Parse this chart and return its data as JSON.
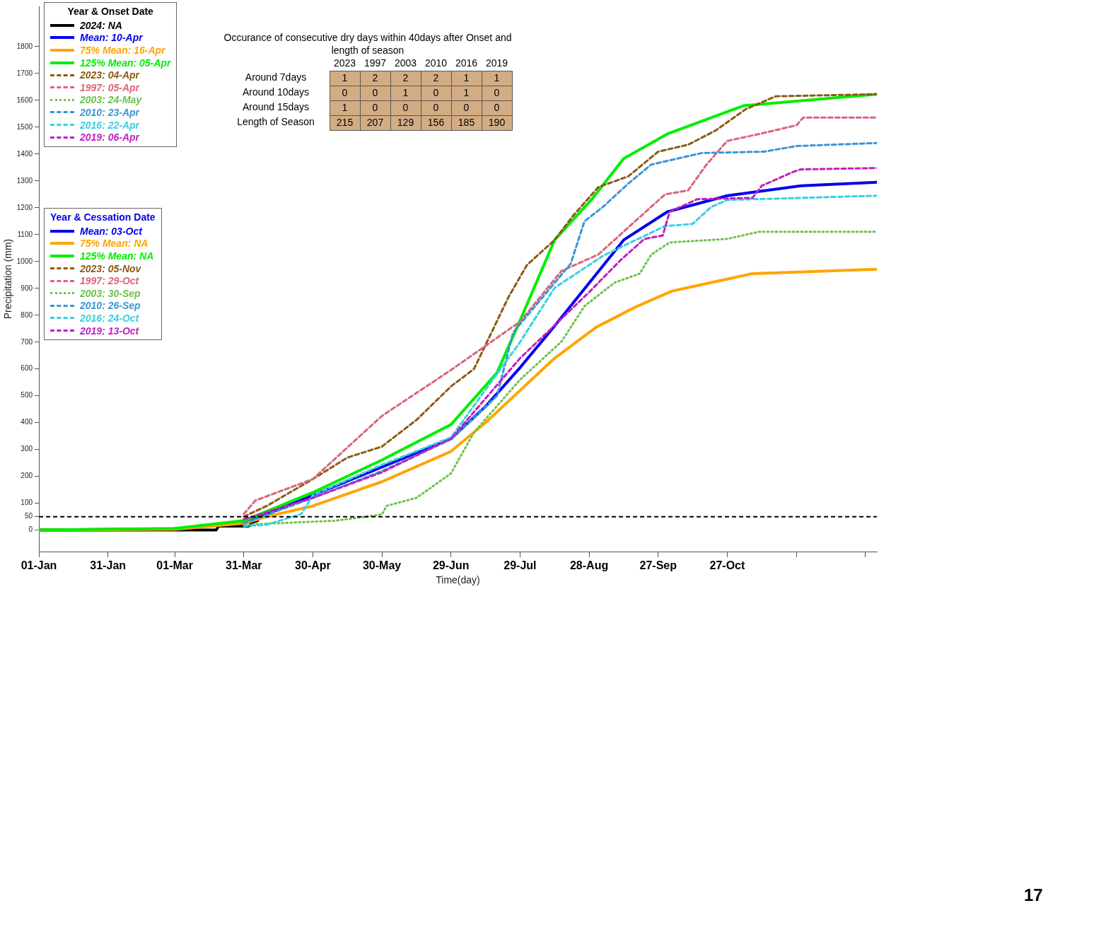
{
  "chart_data": [
    {
      "type": "line",
      "xlabel": "Time(day)",
      "ylabel": "Precipitation (mm)",
      "legend": "top left",
      "legend_title": "Year & Onset Date",
      "grid": false,
      "xlim": [
        "--01-01",
        "--12-31"
      ],
      "ylim": [
        -80,
        1950
      ],
      "xticks": [
        {
          "value": "--01-01",
          "label": "01-Jan"
        },
        {
          "value": "--01-31",
          "label": "31-Jan"
        },
        {
          "value": "--03-01",
          "label": "01-Mar"
        },
        {
          "value": "--03-31",
          "label": "31-Mar"
        },
        {
          "value": "--04-30",
          "label": "30-Apr"
        },
        {
          "value": "--05-30",
          "label": "30-May"
        },
        {
          "value": "--06-29",
          "label": "29-Jun"
        },
        {
          "value": "--07-29",
          "label": "29-Jul"
        },
        {
          "value": "--08-28",
          "label": "28-Aug"
        },
        {
          "value": "--09-27",
          "label": "27-Sep"
        },
        {
          "value": "--10-27",
          "label": "27-Oct"
        },
        {
          "value": "--11-26",
          "label": null
        },
        {
          "value": "--12-26",
          "label": null
        }
      ],
      "yticks": [
        0,
        50,
        100,
        200,
        300,
        400,
        500,
        600,
        700,
        800,
        900,
        1000,
        1100,
        1200,
        1300,
        1400,
        1500,
        1600,
        1700,
        1800
      ],
      "ref_lines": [
        {
          "axis": "y",
          "value": 50,
          "color": "#000000",
          "line_style": "dashed"
        }
      ],
      "series": [
        {
          "name": "2024: NA",
          "color": "#000000",
          "line_style": "solid",
          "x": [
            "--01-01",
            "--02-10",
            "--03-19",
            "--03-20",
            "--04-02",
            "--04-04",
            "--04-06"
          ],
          "values": [
            0,
            0,
            0,
            15,
            15,
            30,
            35
          ]
        },
        {
          "name": "Mean: 10-Apr",
          "color": "#0000ee",
          "line_style": "solid",
          "x": [
            "--01-01",
            "--03-01",
            "--03-31",
            "--04-10",
            "--04-30",
            "--05-30",
            "--06-29",
            "--07-14",
            "--07-29",
            "--08-13",
            "--08-28",
            "--09-12",
            "--10-01",
            "--10-27",
            "--11-28",
            "--12-31"
          ],
          "values": [
            0,
            5,
            30,
            60,
            130,
            235,
            340,
            460,
            605,
            760,
            920,
            1080,
            1185,
            1245,
            1282,
            1295
          ]
        },
        {
          "name": "75% Mean: 16-Apr",
          "color": "#ffa500",
          "line_style": "solid",
          "x": [
            "--01-01",
            "--03-01",
            "--03-31",
            "--04-10",
            "--04-30",
            "--05-30",
            "--06-29",
            "--07-14",
            "--07-29",
            "--08-13",
            "--08-31",
            "--09-17",
            "--10-03",
            "--11-07",
            "--12-31"
          ],
          "values": [
            0,
            3,
            25,
            50,
            90,
            180,
            293,
            400,
            520,
            640,
            755,
            830,
            890,
            955,
            971
          ]
        },
        {
          "name": "125% Mean: 05-Apr",
          "color": "#00ee00",
          "line_style": "solid",
          "x": [
            "--01-01",
            "--03-01",
            "--03-31",
            "--04-10",
            "--04-30",
            "--05-30",
            "--06-29",
            "--07-19",
            "--07-29",
            "--08-13",
            "--08-29",
            "--09-12",
            "--10-01",
            "--11-03",
            "--12-31"
          ],
          "values": [
            0,
            6,
            35,
            70,
            140,
            261,
            393,
            586,
            780,
            1080,
            1230,
            1383,
            1475,
            1580,
            1623
          ]
        },
        {
          "name": "2023: 04-Apr",
          "color": "#8b5a13",
          "line_style": "dashed",
          "x": [
            "--03-31",
            "--04-10",
            "--04-30",
            "--05-15",
            "--05-30",
            "--06-14",
            "--06-29",
            "--07-09",
            "--07-24",
            "--08-01",
            "--08-13",
            "--08-21",
            "--09-01",
            "--09-14",
            "--09-27",
            "--10-10",
            "--10-22",
            "--11-04",
            "--11-17",
            "--12-31"
          ],
          "values": [
            50,
            90,
            190,
            270,
            311,
            410,
            535,
            600,
            868,
            987,
            1080,
            1170,
            1277,
            1317,
            1409,
            1435,
            1488,
            1567,
            1615,
            1623
          ]
        },
        {
          "name": "1997: 05-Apr",
          "color": "#dc6478",
          "line_style": "dashed",
          "x": [
            "--03-31",
            "--04-05",
            "--04-30",
            "--05-30",
            "--06-29",
            "--07-29",
            "--08-16",
            "--09-01",
            "--09-17",
            "--09-30",
            "--10-10",
            "--10-18",
            "--10-27",
            "--11-10",
            "--11-26",
            "--11-29",
            "--12-31"
          ],
          "values": [
            60,
            110,
            190,
            425,
            596,
            776,
            965,
            1026,
            1150,
            1250,
            1265,
            1361,
            1449,
            1475,
            1507,
            1536,
            1536
          ]
        },
        {
          "name": "2003: 24-May",
          "color": "#6cc24a",
          "line_style": "dotted",
          "x": [
            "--03-31",
            "--05-10",
            "--05-30",
            "--06-01",
            "--06-14",
            "--06-29",
            "--07-09",
            "--07-29",
            "--08-16",
            "--08-26",
            "--09-08",
            "--09-19",
            "--09-24",
            "--10-02",
            "--10-27",
            "--11-10",
            "--12-31"
          ],
          "values": [
            20,
            35,
            58,
            90,
            120,
            211,
            364,
            560,
            702,
            834,
            921,
            955,
            1026,
            1071,
            1084,
            1111,
            1111
          ]
        },
        {
          "name": "2010: 23-Apr",
          "color": "#3a95d5",
          "line_style": "dashed",
          "x": [
            "--03-31",
            "--04-30",
            "--05-30",
            "--06-29",
            "--07-19",
            "--07-26",
            "--08-20",
            "--08-26",
            "--09-03",
            "--09-14",
            "--09-24",
            "--10-16",
            "--11-12",
            "--11-26",
            "--12-31"
          ],
          "values": [
            25,
            120,
            220,
            338,
            500,
            736,
            992,
            1150,
            1203,
            1290,
            1361,
            1404,
            1409,
            1430,
            1441
          ]
        },
        {
          "name": "2016: 22-Apr",
          "color": "#38d0e0",
          "line_style": "dashed",
          "x": [
            "--03-31",
            "--04-10",
            "--04-25",
            "--04-30",
            "--05-30",
            "--06-29",
            "--07-29",
            "--08-13",
            "--09-03",
            "--09-17",
            "--09-30",
            "--10-12",
            "--10-20",
            "--10-27",
            "--12-31"
          ],
          "values": [
            15,
            20,
            60,
            130,
            243,
            345,
            700,
            902,
            1021,
            1079,
            1132,
            1140,
            1203,
            1229,
            1245
          ]
        },
        {
          "name": "2019: 06-Apr",
          "color": "#c020c0",
          "line_style": "dashed",
          "x": [
            "--03-31",
            "--04-30",
            "--05-30",
            "--06-29",
            "--07-29",
            "--08-13",
            "--08-28",
            "--09-11",
            "--09-21",
            "--09-29",
            "--10-02",
            "--10-14",
            "--11-07",
            "--11-11",
            "--11-25",
            "--11-28",
            "--12-31"
          ],
          "values": [
            40,
            120,
            215,
            340,
            640,
            762,
            886,
            1008,
            1084,
            1097,
            1185,
            1232,
            1237,
            1282,
            1335,
            1343,
            1348
          ]
        }
      ],
      "annotations": [
        "Year & Cessation Date",
        "Mean: 03-Oct",
        "75% Mean: NA",
        "125% Mean: NA",
        "2023: 05-Nov",
        "1997: 29-Oct",
        "2003: 30-Sep",
        "2010: 26-Sep",
        "2016: 24-Oct",
        "2019: 13-Oct",
        "17"
      ]
    },
    {
      "type": "heatmap",
      "title": "Occurance of consecutive dry days within 40days after Onset and length of season",
      "categories": [
        "2023",
        "1997",
        "2003",
        "2010",
        "2016",
        "2019"
      ],
      "y_categories": [
        "Around 7days",
        "Around 10days",
        "Around 15days",
        "Length of Season"
      ],
      "color": "#d2ad84",
      "data_labels": true,
      "cells": [
        [
          1,
          2,
          2,
          2,
          1,
          1
        ],
        [
          0,
          0,
          1,
          0,
          1,
          0
        ],
        [
          1,
          0,
          0,
          0,
          0,
          0
        ],
        [
          215,
          207,
          129,
          156,
          185,
          190
        ]
      ]
    }
  ]
}
